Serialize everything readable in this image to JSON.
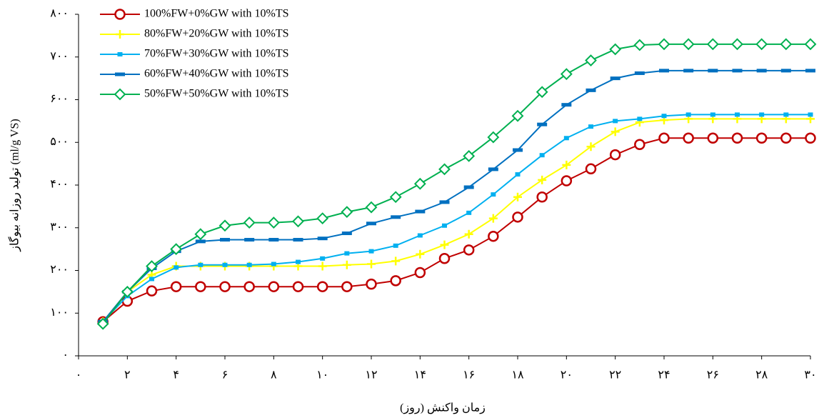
{
  "chart_data": {
    "type": "line",
    "xlabel": "زمان واکنش (روز)",
    "ylabel": "تولید روزانه بیوگاز (ml/g VS)",
    "x": [
      1,
      2,
      3,
      4,
      5,
      6,
      7,
      8,
      9,
      10,
      11,
      12,
      13,
      14,
      15,
      16,
      17,
      18,
      19,
      20,
      21,
      22,
      23,
      24,
      25,
      26,
      27,
      28,
      29,
      30
    ],
    "xlim": [
      0,
      30
    ],
    "xticks": [
      {
        "value": 0,
        "label": "۰"
      },
      {
        "value": 2,
        "label": "۲"
      },
      {
        "value": 4,
        "label": "۴"
      },
      {
        "value": 6,
        "label": "۶"
      },
      {
        "value": 8,
        "label": "۸"
      },
      {
        "value": 10,
        "label": "۱۰"
      },
      {
        "value": 12,
        "label": "۱۲"
      },
      {
        "value": 14,
        "label": "۱۴"
      },
      {
        "value": 16,
        "label": "۱۶"
      },
      {
        "value": 18,
        "label": "۱۸"
      },
      {
        "value": 20,
        "label": "۲۰"
      },
      {
        "value": 22,
        "label": "۲۲"
      },
      {
        "value": 24,
        "label": "۲۴"
      },
      {
        "value": 26,
        "label": "۲۶"
      },
      {
        "value": 28,
        "label": "۲۸"
      },
      {
        "value": 30,
        "label": "۳۰"
      }
    ],
    "ylim": [
      0,
      800
    ],
    "yticks": [
      {
        "value": 0,
        "label": "۰"
      },
      {
        "value": 100,
        "label": "۱۰۰"
      },
      {
        "value": 200,
        "label": "۲۰۰"
      },
      {
        "value": 300,
        "label": "۳۰۰"
      },
      {
        "value": 400,
        "label": "۴۰۰"
      },
      {
        "value": 500,
        "label": "۵۰۰"
      },
      {
        "value": 600,
        "label": "۶۰۰"
      },
      {
        "value": 700,
        "label": "۷۰۰"
      },
      {
        "value": 800,
        "label": "۸۰۰"
      }
    ],
    "legend": "top-left",
    "series": [
      {
        "name": "100%FW+0%GW with 10%TS",
        "color": "#c00000",
        "marker": "circle",
        "values": [
          80,
          128,
          152,
          162,
          162,
          162,
          162,
          162,
          162,
          162,
          162,
          168,
          176,
          195,
          228,
          248,
          280,
          325,
          372,
          410,
          438,
          471,
          495,
          510,
          510,
          510,
          510,
          510,
          510,
          510
        ]
      },
      {
        "name": "80%FW+20%GW with 10%TS",
        "color": "#ffff00",
        "marker": "plus",
        "values": [
          80,
          150,
          190,
          210,
          210,
          210,
          210,
          210,
          210,
          210,
          213,
          215,
          222,
          238,
          260,
          285,
          322,
          372,
          412,
          447,
          490,
          525,
          547,
          552,
          555,
          555,
          555,
          555,
          555,
          555
        ]
      },
      {
        "name": "70%FW+30%GW with 10%TS",
        "color": "#00b0f0",
        "marker": "square",
        "values": [
          80,
          140,
          180,
          207,
          213,
          213,
          213,
          215,
          220,
          228,
          240,
          245,
          258,
          282,
          305,
          335,
          378,
          425,
          470,
          510,
          537,
          550,
          555,
          562,
          565,
          565,
          565,
          565,
          565,
          565
        ]
      },
      {
        "name": "60%FW+40%GW with 10%TS",
        "color": "#0070c0",
        "marker": "dash",
        "values": [
          80,
          150,
          205,
          245,
          268,
          272,
          272,
          272,
          272,
          275,
          287,
          310,
          325,
          338,
          360,
          395,
          437,
          482,
          542,
          588,
          622,
          650,
          662,
          668,
          668,
          668,
          668,
          668,
          668,
          668
        ]
      },
      {
        "name": "50%FW+50%GW with 10%TS",
        "color": "#00b050",
        "marker": "diamond",
        "values": [
          75,
          150,
          210,
          250,
          285,
          305,
          312,
          312,
          315,
          322,
          337,
          348,
          372,
          403,
          437,
          468,
          512,
          562,
          618,
          660,
          692,
          718,
          728,
          730,
          730,
          730,
          730,
          730,
          730,
          730
        ]
      }
    ]
  }
}
